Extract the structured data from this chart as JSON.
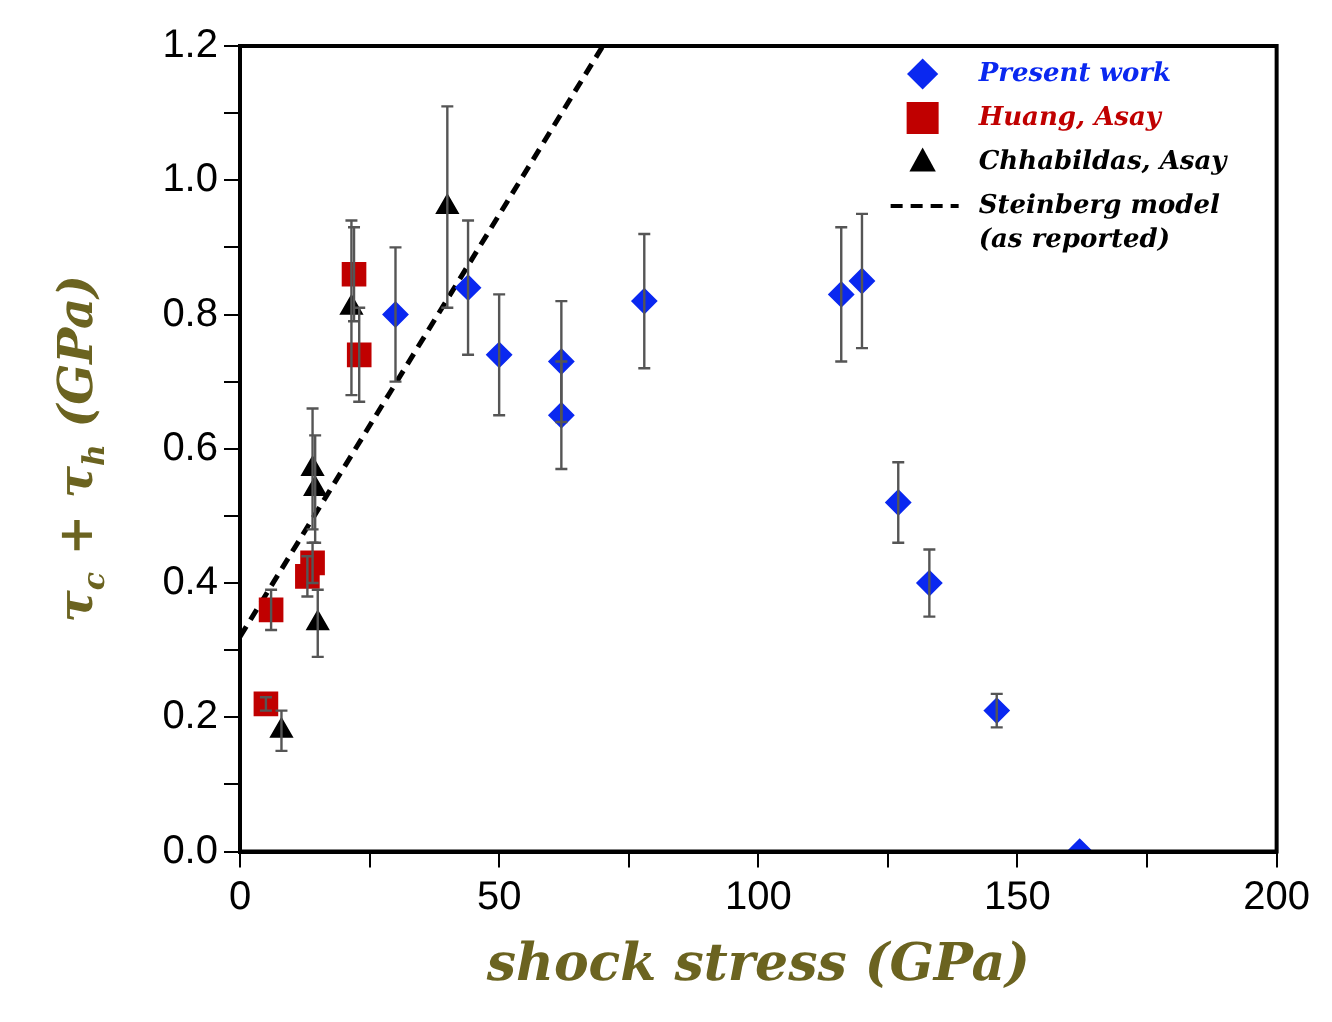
{
  "chart_data": {
    "type": "scatter",
    "xlabel": "shock stress (GPa)",
    "ylabel": "τ$_{c}$ + τ$_{h}$ (GPa)",
    "xlim": [
      0,
      200
    ],
    "xticks": [
      0,
      {
        "value": 25,
        "label": null
      },
      50,
      {
        "value": 75,
        "label": null
      },
      100,
      {
        "value": 125,
        "label": null
      },
      150,
      {
        "value": 175,
        "label": null
      },
      200
    ],
    "ylim": [
      0,
      1.2
    ],
    "yticks": [
      {
        "value": 0,
        "label": "0.0"
      },
      {
        "value": 0.1,
        "label": null
      },
      0.2,
      {
        "value": 0.3,
        "label": null
      },
      0.4,
      {
        "value": 0.5,
        "label": null
      },
      0.6,
      {
        "value": 0.7,
        "label": null
      },
      0.8,
      {
        "value": 0.9,
        "label": null
      },
      {
        "value": 1,
        "label": "1.0"
      },
      {
        "value": 1.1,
        "label": null
      },
      1.2
    ],
    "grid": false,
    "legend": "top right",
    "series": [
      {
        "name": "Present work",
        "color": "#0a28f0",
        "marker": "diamond",
        "x": [
          30,
          44,
          50,
          62,
          62,
          78,
          116,
          120,
          127,
          133,
          146,
          162
        ],
        "values": [
          0.8,
          0.84,
          0.74,
          0.73,
          0.65,
          0.82,
          0.83,
          0.85,
          0.52,
          0.4,
          0.21,
          0
        ],
        "errors": [
          0.1,
          0.1,
          0.09,
          0.09,
          0.08,
          0.1,
          0.1,
          0.1,
          0.06,
          0.05,
          0.025,
          null
        ]
      },
      {
        "name": "Huang, Asay",
        "color": "#c00000",
        "marker": "square",
        "x": [
          5,
          6,
          13,
          14,
          22,
          23
        ],
        "values": [
          0.22,
          0.36,
          0.41,
          0.43,
          0.86,
          0.74
        ],
        "errors": [
          0.01,
          0.03,
          0.03,
          0.03,
          0.07,
          0.07
        ]
      },
      {
        "name": "Chhabildas, Asay",
        "color": "#000000",
        "marker": "triangle",
        "x": [
          8,
          14,
          14.5,
          15,
          21.5,
          40
        ],
        "values": [
          0.18,
          0.57,
          0.54,
          0.34,
          0.81,
          0.96
        ],
        "errors": [
          0.03,
          0.09,
          0.08,
          0.05,
          0.13,
          0.15
        ]
      },
      {
        "name": "Steinberg model\n(as reported)",
        "type": "line",
        "color": "#000000",
        "marker": "none",
        "line_style": "dashed",
        "x": [
          0,
          70
        ],
        "values": [
          0.32,
          1.2
        ]
      }
    ]
  }
}
